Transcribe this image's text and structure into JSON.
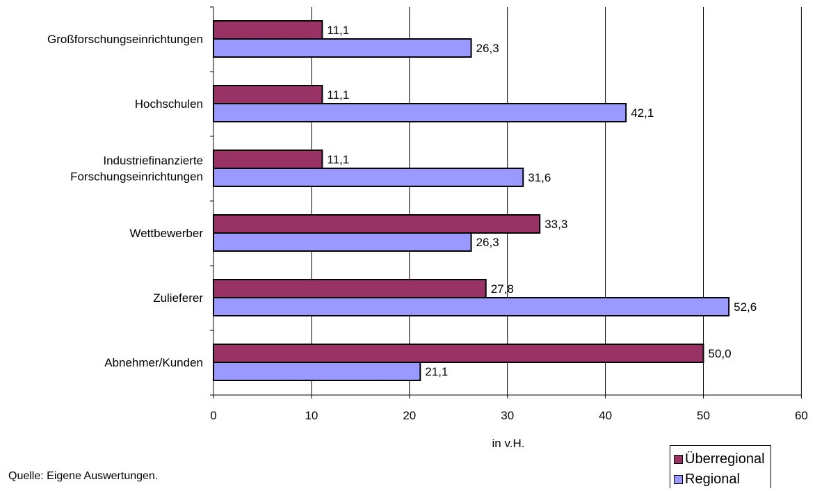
{
  "chart_data": {
    "type": "bar",
    "orientation": "horizontal",
    "categories": [
      [
        "Großforschungseinrichtungen"
      ],
      [
        "Hochschulen"
      ],
      [
        "Industriefinanzierte",
        "Forschungseinrichtungen"
      ],
      [
        "Wettbewerber"
      ],
      [
        "Zulieferer"
      ],
      [
        "Abnehmer/Kunden"
      ]
    ],
    "series": [
      {
        "name": "Überregional",
        "color": "#993366",
        "values": [
          11.1,
          11.1,
          11.1,
          33.3,
          27.8,
          50.0
        ],
        "labels": [
          "11,1",
          "11,1",
          "11,1",
          "33,3",
          "27,8",
          "50,0"
        ]
      },
      {
        "name": "Regional",
        "color": "#9999FF",
        "values": [
          26.3,
          42.1,
          31.6,
          26.3,
          52.6,
          21.1
        ],
        "labels": [
          "26,3",
          "42,1",
          "31,6",
          "26,3",
          "52,6",
          "21,1"
        ]
      }
    ],
    "xlabel": "in v.H.",
    "xlim": [
      0,
      60
    ],
    "xticks": [
      "0",
      "10",
      "20",
      "30",
      "40",
      "50",
      "60"
    ],
    "grid": "vertical",
    "legend_position": "bottom-right"
  },
  "source_note": "Quelle: Eigene Auswertungen."
}
